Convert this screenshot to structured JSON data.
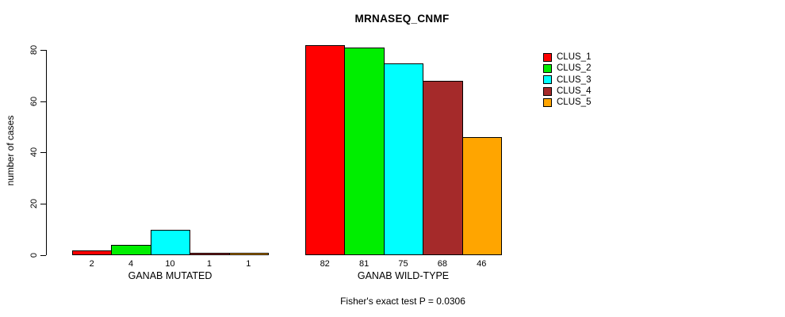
{
  "chart_data": {
    "type": "bar",
    "title": "MRNASEQ_CNMF",
    "ylabel": "number of cases",
    "xlabel": "",
    "ylim": [
      0,
      80
    ],
    "yticks": [
      0,
      20,
      40,
      60,
      80
    ],
    "grid": false,
    "legend_position": "right",
    "categories": [
      "GANAB MUTATED",
      "GANAB WILD-TYPE"
    ],
    "series": [
      {
        "name": "CLUS_1",
        "color": "#ff0000",
        "values": [
          2,
          82
        ]
      },
      {
        "name": "CLUS_2",
        "color": "#00ee00",
        "values": [
          4,
          81
        ]
      },
      {
        "name": "CLUS_3",
        "color": "#00ffff",
        "values": [
          10,
          75
        ]
      },
      {
        "name": "CLUS_4",
        "color": "#a52a2a",
        "values": [
          1,
          68
        ]
      },
      {
        "name": "CLUS_5",
        "color": "#ffa500",
        "values": [
          1,
          46
        ]
      }
    ],
    "annotation": "Fisher's exact test P = 0.0306"
  }
}
